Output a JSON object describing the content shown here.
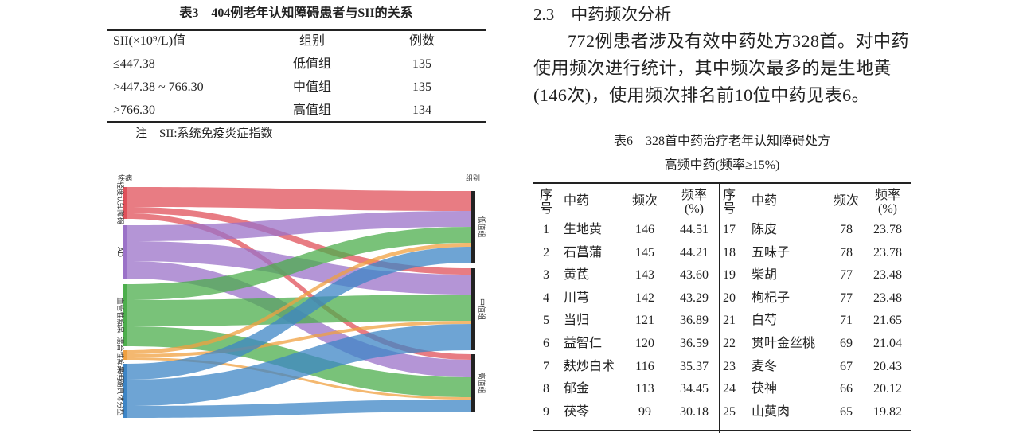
{
  "table3": {
    "title": "表3　404例老年认知障碍患者与SII的关系",
    "header": [
      "SII(×10⁹/L)值",
      "组别",
      "例数"
    ],
    "rows": [
      [
        "≤447.38",
        "低值组",
        "135"
      ],
      [
        ">447.38 ~ 766.30",
        "中值组",
        "135"
      ],
      [
        ">766.30",
        "高值组",
        "134"
      ]
    ],
    "note": "注　SII:系统免疫炎症指数"
  },
  "figure": {
    "left_title": "疾病",
    "right_title": "组别",
    "left_nodes": [
      "轻度认知障碍",
      "AD",
      "血管性痴呆",
      "混合性痴呆",
      "未明确具体分型"
    ],
    "right_nodes": [
      "低值组",
      "中值组",
      "高值组"
    ]
  },
  "section": {
    "heading": "2.3　中药频次分析",
    "paragraph": [
      "772例患者涉及有效中药处方328首。对中药",
      "使用频次进行统计，其中频次最多的是生地黄",
      "(146次)，使用频次排名前10位中药见表6。"
    ]
  },
  "table6": {
    "title": [
      "表6　328首中药治疗老年认知障碍处方",
      "高频中药(频率≥15%)"
    ],
    "header": [
      "序号",
      "中药",
      "频次",
      "频率(%)",
      "序号",
      "中药",
      "频次",
      "频率(%)"
    ],
    "rows": [
      [
        "1",
        "生地黄",
        "146",
        "44.51",
        "17",
        "陈皮",
        "78",
        "23.78"
      ],
      [
        "2",
        "石菖蒲",
        "145",
        "44.21",
        "18",
        "五味子",
        "78",
        "23.78"
      ],
      [
        "3",
        "黄芪",
        "143",
        "43.60",
        "19",
        "柴胡",
        "77",
        "23.48"
      ],
      [
        "4",
        "川芎",
        "142",
        "43.29",
        "20",
        "枸杞子",
        "77",
        "23.48"
      ],
      [
        "5",
        "当归",
        "121",
        "36.89",
        "21",
        "白芍",
        "71",
        "21.65"
      ],
      [
        "6",
        "益智仁",
        "120",
        "36.59",
        "22",
        "贯叶金丝桃",
        "69",
        "21.04"
      ],
      [
        "7",
        "麸炒白术",
        "116",
        "35.37",
        "23",
        "麦冬",
        "67",
        "20.43"
      ],
      [
        "8",
        "郁金",
        "113",
        "34.45",
        "24",
        "茯神",
        "66",
        "20.12"
      ],
      [
        "9",
        "茯苓",
        "99",
        "30.18",
        "25",
        "山萸肉",
        "65",
        "19.82"
      ]
    ]
  }
}
